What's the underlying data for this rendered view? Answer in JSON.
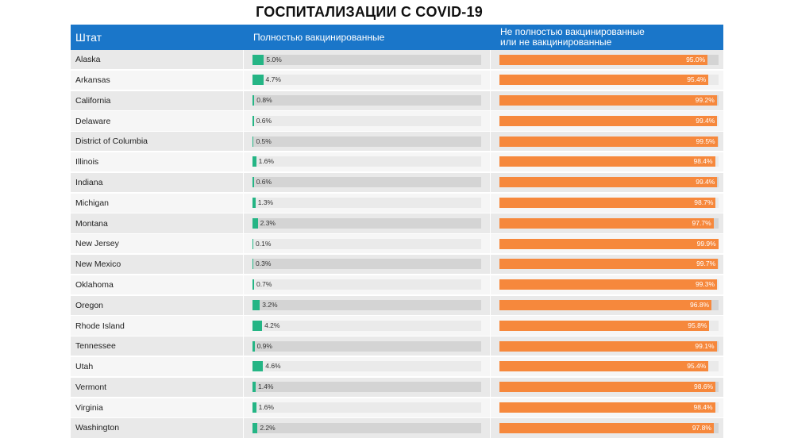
{
  "chart_data": {
    "type": "table",
    "title": "ГОСПИТАЛИЗАЦИИ С COVID-19",
    "columns": [
      "Штат",
      "Полностью вакцинированные",
      "Не полностью вакцинированные или не вакцинированные"
    ],
    "unit": "%",
    "rows": [
      {
        "state": "Alaska",
        "vaccinated": 5.0,
        "unvaccinated": 95.0
      },
      {
        "state": "Arkansas",
        "vaccinated": 4.7,
        "unvaccinated": 95.4
      },
      {
        "state": "California",
        "vaccinated": 0.8,
        "unvaccinated": 99.2
      },
      {
        "state": "Delaware",
        "vaccinated": 0.6,
        "unvaccinated": 99.4
      },
      {
        "state": "District of Columbia",
        "vaccinated": 0.5,
        "unvaccinated": 99.5
      },
      {
        "state": "Illinois",
        "vaccinated": 1.6,
        "unvaccinated": 98.4
      },
      {
        "state": "Indiana",
        "vaccinated": 0.6,
        "unvaccinated": 99.4
      },
      {
        "state": "Michigan",
        "vaccinated": 1.3,
        "unvaccinated": 98.7
      },
      {
        "state": "Montana",
        "vaccinated": 2.3,
        "unvaccinated": 97.7
      },
      {
        "state": "New Jersey",
        "vaccinated": 0.1,
        "unvaccinated": 99.9
      },
      {
        "state": "New Mexico",
        "vaccinated": 0.3,
        "unvaccinated": 99.7
      },
      {
        "state": "Oklahoma",
        "vaccinated": 0.7,
        "unvaccinated": 99.3
      },
      {
        "state": "Oregon",
        "vaccinated": 3.2,
        "unvaccinated": 96.8
      },
      {
        "state": "Rhode Island",
        "vaccinated": 4.2,
        "unvaccinated": 95.8
      },
      {
        "state": "Tennessee",
        "vaccinated": 0.9,
        "unvaccinated": 99.1
      },
      {
        "state": "Utah",
        "vaccinated": 4.6,
        "unvaccinated": 95.4
      },
      {
        "state": "Vermont",
        "vaccinated": 1.4,
        "unvaccinated": 98.6
      },
      {
        "state": "Virginia",
        "vaccinated": 1.6,
        "unvaccinated": 98.4
      },
      {
        "state": "Washington",
        "vaccinated": 2.2,
        "unvaccinated": 97.8
      }
    ],
    "vaccinated_scale_max": 100,
    "unvaccinated_scale_max": 100
  },
  "header": {
    "state": "Штат",
    "vaccinated": "Полностью вакцинированные",
    "unvaccinated_line1": "Не полностью вакцинированные",
    "unvaccinated_line2": "или  не вакцинированные"
  },
  "colors": {
    "header_bg": "#1a76c9",
    "vaccinated_bar": "#25b585",
    "unvaccinated_bar": "#f6883c"
  }
}
